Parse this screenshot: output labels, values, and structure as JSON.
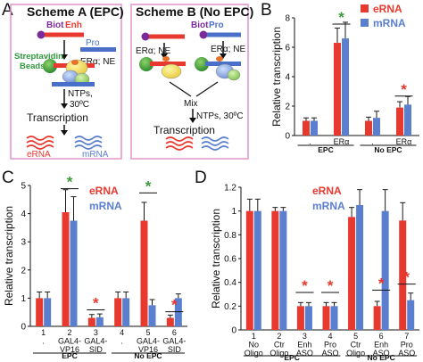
{
  "colors": {
    "erna": "#e8392e",
    "mrna": "#5a7fcf",
    "star_green": "#3c9b3c",
    "star_red": "#e8392e",
    "scheme_border": "#e293cc",
    "purple": "#7a2b9a",
    "orange": "#e6722a",
    "green": "#3ea93a",
    "streptavidin": "#2e9a3e"
  },
  "panels": {
    "A": "A",
    "B": "B",
    "C": "C",
    "D": "D"
  },
  "scheme_a": {
    "title": "Scheme A (EPC)",
    "biot": "Biot",
    "enh": "Enh",
    "pro": "Pro",
    "factors": "ERα; NE",
    "beads": "Streptavidin\nBeads",
    "ntps": "NTPs,",
    "temp": "30ºC",
    "transcription": "Transcription",
    "erna": "eRNA",
    "mrna": "mRNA"
  },
  "scheme_b": {
    "title": "Scheme B (No EPC)",
    "biot": "Biot",
    "pro": "Pro",
    "factors_left": "ERα; NE",
    "factors_right": "ERα; NE",
    "mix": "Mix",
    "ntps": "NTPs, 30ºC",
    "transcription": "Transcription"
  },
  "chart_data": [
    {
      "panel": "B",
      "type": "bar",
      "ylabel": "Relative transcription",
      "ylim": [
        0,
        8
      ],
      "yticks": [
        0,
        2,
        4,
        6,
        8
      ],
      "categories": [
        ".",
        "ERα",
        ".",
        "ERα"
      ],
      "groups": [
        {
          "label": "EPC",
          "span": [
            0,
            1
          ]
        },
        {
          "label": "No EPC",
          "span": [
            2,
            3
          ]
        }
      ],
      "series": [
        {
          "name": "eRNA",
          "values": [
            1.0,
            6.3,
            1.0,
            1.9
          ],
          "errors": [
            0.2,
            1.0,
            0.25,
            0.4
          ]
        },
        {
          "name": "mRNA",
          "values": [
            1.0,
            6.6,
            1.2,
            2.1
          ],
          "errors": [
            0.2,
            1.1,
            0.45,
            0.55
          ]
        }
      ],
      "significance": [
        {
          "category": 1,
          "symbol": "*",
          "color": "green",
          "y": 7.7
        },
        {
          "category": 3,
          "symbol": "*",
          "color": "red",
          "y": 2.8
        }
      ],
      "legend": [
        "eRNA",
        "mRNA"
      ],
      "legend_position": "top-right",
      "grid": false
    },
    {
      "panel": "C",
      "type": "bar",
      "ylabel": "Relative transcription",
      "ylim": [
        0,
        5
      ],
      "yticks": [
        0,
        1,
        2,
        3,
        4,
        5
      ],
      "categories": [
        "1\n.",
        "2\nGAL4-\nVP16",
        "3\nGAL4-\nSID",
        "4\n.",
        "5\nGAL4-\nVP16",
        "6\nGAL4-\nSID"
      ],
      "groups": [
        {
          "label": "EPC",
          "span": [
            0,
            2
          ]
        },
        {
          "label": "No EPC",
          "span": [
            3,
            5
          ]
        }
      ],
      "series": [
        {
          "name": "eRNA",
          "values": [
            1.0,
            4.05,
            0.3,
            1.0,
            3.75,
            0.3
          ],
          "errors": [
            0.22,
            0.8,
            0.12,
            0.22,
            0.65,
            0.1
          ]
        },
        {
          "name": "mRNA",
          "values": [
            1.0,
            3.75,
            0.32,
            1.0,
            0.75,
            1.0
          ],
          "errors": [
            0.22,
            0.85,
            0.12,
            0.22,
            0.2,
            0.15
          ]
        }
      ],
      "significance": [
        {
          "category": 1,
          "symbol": "*",
          "color": "green",
          "y": 4.95
        },
        {
          "category": 2,
          "symbol": "*",
          "color": "red",
          "y": 0.65
        },
        {
          "category": 4,
          "symbol": "*",
          "color": "green",
          "y": 4.8
        },
        {
          "category": 5,
          "symbol": "*",
          "color": "red",
          "y": 0.58
        }
      ],
      "legend": [
        "eRNA",
        "mRNA"
      ],
      "legend_position": "top-right",
      "grid": false
    },
    {
      "panel": "D",
      "type": "bar",
      "ylabel": "Relative transcription",
      "ylim": [
        0,
        1.2
      ],
      "yticks": [
        0,
        0.2,
        0.4,
        0.6,
        0.8,
        1,
        1.2
      ],
      "categories": [
        "1\nNo\nOligo",
        "2\nCtr\nOligo",
        "3\nEnh\nASO",
        "4\nPro\nASO",
        "5\nCtr\nOligo",
        "6\nEnh\nASO",
        "7\nPro\nASO"
      ],
      "groups": [
        {
          "label": "EPC",
          "span": [
            0,
            3
          ]
        },
        {
          "label": "No EPC",
          "span": [
            4,
            6
          ]
        }
      ],
      "series": [
        {
          "name": "eRNA",
          "values": [
            1.0,
            1.0,
            0.2,
            0.2,
            0.95,
            0.2,
            0.92
          ],
          "errors": [
            0.1,
            0.03,
            0.03,
            0.03,
            0.08,
            0.04,
            0.15
          ]
        },
        {
          "name": "mRNA",
          "values": [
            1.0,
            1.0,
            0.2,
            0.2,
            1.05,
            1.0,
            0.25
          ],
          "errors": [
            0.1,
            0.03,
            0.03,
            0.03,
            0.13,
            0.18,
            0.06
          ]
        }
      ],
      "significance": [
        {
          "category": 2,
          "symbol": "*",
          "color": "red",
          "y": 0.33
        },
        {
          "category": 3,
          "symbol": "*",
          "color": "red",
          "y": 0.33
        },
        {
          "category": 5,
          "symbol": "*",
          "color": "red",
          "y": 0.35
        },
        {
          "category": 6,
          "symbol": "*",
          "color": "red",
          "y": 0.4
        }
      ],
      "legend": [
        "eRNA",
        "mRNA"
      ],
      "legend_position": "top-center",
      "grid": false
    }
  ]
}
